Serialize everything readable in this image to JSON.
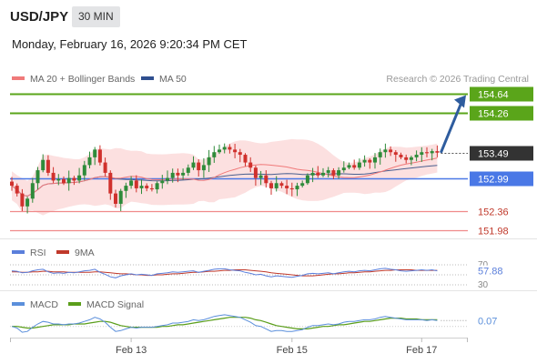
{
  "header": {
    "symbol": "USD/JPY",
    "interval": "30 MIN",
    "datetime": "Monday, February 16, 2026 9:20:34 PM CET"
  },
  "legend": {
    "ma20_label": "MA 20 + Bollinger Bands",
    "ma50_label": "MA 50",
    "credit": "Research © 2026 Trading Central"
  },
  "colors": {
    "bull": "#2e8b3a",
    "bear": "#d0312d",
    "ma20": "#f07a7a",
    "ma50": "#4a5f8f",
    "band_fill": "#fbd5d5",
    "resistance": "#5aa51a",
    "pivot": "#4a78e6",
    "support": "#f08a8a",
    "last_price": "#333333",
    "arrow": "#2e5c9e",
    "rsi": "#5b7fdb",
    "rsi_ma": "#c0392b",
    "macd": "#5b8fdb",
    "macd_signal": "#5a9e1a"
  },
  "chart_data": [
    {
      "type": "candlestick",
      "panel": "price",
      "y_range": [
        151.9,
        154.72
      ],
      "levels": [
        {
          "name": "resistance-2",
          "value": 154.64,
          "label": "154.64",
          "style": "resistance"
        },
        {
          "name": "resistance-1",
          "value": 154.26,
          "label": "154.26",
          "style": "resistance"
        },
        {
          "name": "last-price",
          "value": 153.49,
          "label": "153.49",
          "style": "last"
        },
        {
          "name": "pivot",
          "value": 152.99,
          "label": "152.99",
          "style": "pivot"
        },
        {
          "name": "support-1",
          "value": 152.36,
          "label": "152.36",
          "style": "support"
        },
        {
          "name": "support-2",
          "value": 151.98,
          "label": "151.98",
          "style": "support"
        }
      ],
      "closes": [
        152.85,
        152.7,
        152.45,
        152.6,
        152.9,
        153.15,
        153.35,
        153.1,
        152.95,
        152.98,
        152.9,
        153.0,
        152.95,
        153.05,
        153.25,
        153.4,
        153.55,
        153.3,
        153.1,
        152.7,
        152.5,
        152.75,
        152.85,
        152.95,
        152.8,
        152.85,
        152.8,
        152.78,
        152.9,
        152.95,
        153.0,
        153.1,
        153.05,
        153.1,
        153.2,
        153.3,
        153.15,
        153.25,
        153.4,
        153.5,
        153.55,
        153.6,
        153.55,
        153.5,
        153.45,
        153.3,
        153.2,
        153.0,
        153.05,
        152.9,
        152.8,
        152.9,
        152.85,
        152.8,
        152.78,
        152.85,
        152.9,
        153.05,
        153.1,
        153.05,
        153.1,
        153.15,
        153.05,
        153.15,
        153.2,
        153.25,
        153.2,
        153.3,
        153.35,
        153.3,
        153.4,
        153.5,
        153.55,
        153.5,
        153.45,
        153.4,
        153.35,
        153.4,
        153.45,
        153.5,
        153.48,
        153.52,
        153.49
      ],
      "arrow_target": 154.64,
      "x_ticks": [
        {
          "index": 23,
          "label": "Feb 13"
        },
        {
          "index": 54,
          "label": "Feb 15"
        },
        {
          "index": 79,
          "label": "Feb 17"
        }
      ]
    },
    {
      "type": "line",
      "panel": "rsi",
      "legend": [
        "RSI",
        "9MA"
      ],
      "y_range": [
        30,
        70
      ],
      "y_ticks": [
        30,
        70
      ],
      "last_value": 57.88,
      "last_label": "57.88",
      "rsi": [
        58,
        57,
        54,
        55,
        58,
        60,
        61,
        56,
        53,
        54,
        53,
        55,
        54,
        56,
        58,
        59,
        61,
        55,
        51,
        46,
        44,
        48,
        50,
        52,
        50,
        51,
        50,
        49,
        52,
        53,
        54,
        56,
        55,
        56,
        57,
        58,
        55,
        57,
        59,
        61,
        62,
        62,
        60,
        59,
        58,
        55,
        53,
        50,
        51,
        48,
        46,
        48,
        47,
        46,
        45,
        47,
        49,
        52,
        53,
        52,
        53,
        54,
        52,
        54,
        56,
        57,
        56,
        58,
        59,
        58,
        60,
        62,
        63,
        61,
        60,
        58,
        57,
        58,
        59,
        60,
        59,
        60,
        58
      ],
      "ma9": [
        56,
        56,
        55,
        55,
        56,
        56,
        57,
        57,
        56,
        56,
        56,
        55,
        55,
        55,
        55,
        55,
        56,
        56,
        55,
        54,
        53,
        52,
        52,
        51,
        50,
        50,
        49,
        49,
        50,
        50,
        51,
        52,
        52,
        53,
        54,
        55,
        55,
        56,
        57,
        57,
        58,
        59,
        59,
        60,
        60,
        60,
        59,
        58,
        57,
        56,
        54,
        53,
        52,
        51,
        50,
        49,
        48,
        48,
        48,
        49,
        50,
        51,
        52,
        52,
        53,
        54,
        54,
        55,
        56,
        56,
        57,
        58,
        59,
        59,
        60,
        60,
        60,
        60,
        59,
        59,
        59,
        59,
        59
      ]
    },
    {
      "type": "line",
      "panel": "macd",
      "legend": [
        "MACD",
        "MACD Signal"
      ],
      "last_value": 0.07,
      "last_label": "0.07",
      "macd": [
        0.0,
        -0.02,
        -0.07,
        -0.06,
        -0.01,
        0.03,
        0.06,
        0.05,
        0.03,
        0.03,
        0.02,
        0.03,
        0.03,
        0.04,
        0.06,
        0.08,
        0.11,
        0.09,
        0.05,
        -0.01,
        -0.06,
        -0.05,
        -0.03,
        -0.01,
        -0.02,
        -0.01,
        -0.01,
        -0.01,
        0.0,
        0.01,
        0.02,
        0.04,
        0.04,
        0.05,
        0.06,
        0.08,
        0.07,
        0.08,
        0.1,
        0.12,
        0.13,
        0.14,
        0.13,
        0.12,
        0.11,
        0.08,
        0.05,
        0.01,
        0.0,
        -0.03,
        -0.06,
        -0.05,
        -0.05,
        -0.06,
        -0.06,
        -0.05,
        -0.04,
        -0.01,
        0.01,
        0.01,
        0.02,
        0.03,
        0.02,
        0.03,
        0.05,
        0.06,
        0.06,
        0.07,
        0.08,
        0.08,
        0.09,
        0.11,
        0.12,
        0.11,
        0.1,
        0.09,
        0.08,
        0.08,
        0.08,
        0.08,
        0.07,
        0.08,
        0.07
      ],
      "signal": [
        0.0,
        0.0,
        -0.01,
        -0.02,
        -0.02,
        -0.01,
        0.0,
        0.01,
        0.02,
        0.02,
        0.02,
        0.02,
        0.03,
        0.03,
        0.03,
        0.04,
        0.05,
        0.06,
        0.06,
        0.05,
        0.03,
        0.01,
        0.0,
        -0.01,
        -0.01,
        -0.01,
        -0.01,
        -0.01,
        -0.01,
        0.0,
        0.0,
        0.01,
        0.02,
        0.02,
        0.03,
        0.04,
        0.05,
        0.06,
        0.07,
        0.08,
        0.09,
        0.1,
        0.11,
        0.11,
        0.11,
        0.11,
        0.1,
        0.08,
        0.07,
        0.05,
        0.03,
        0.01,
        0.0,
        -0.01,
        -0.02,
        -0.03,
        -0.03,
        -0.03,
        -0.02,
        -0.01,
        0.0,
        0.0,
        0.01,
        0.02,
        0.02,
        0.03,
        0.04,
        0.05,
        0.06,
        0.06,
        0.07,
        0.08,
        0.09,
        0.1,
        0.1,
        0.1,
        0.09,
        0.09,
        0.09,
        0.08,
        0.08,
        0.08,
        0.08
      ]
    }
  ]
}
